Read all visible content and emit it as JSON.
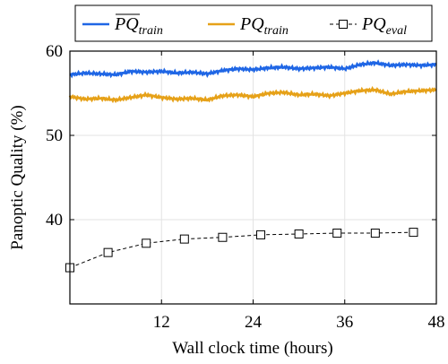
{
  "chart_data": {
    "type": "line",
    "title": "",
    "xlabel": "Wall clock time (hours)",
    "ylabel": "Panoptic Quality (%)",
    "xlim": [
      0,
      48
    ],
    "ylim": [
      30,
      60
    ],
    "xticks": [
      12,
      24,
      36,
      48
    ],
    "yticks": [
      40,
      50,
      60
    ],
    "grid": true,
    "legend_position": "top",
    "series": [
      {
        "name": "PQ_train (averaged, overline)",
        "legend_label": "PQ",
        "legend_subscript": "train",
        "legend_overline": true,
        "color": "#1f66e5",
        "style": "solid",
        "x": [
          0,
          2,
          4,
          6,
          8,
          10,
          12,
          14,
          16,
          18,
          20,
          22,
          24,
          26,
          28,
          30,
          32,
          34,
          36,
          38,
          40,
          42,
          44,
          46,
          48
        ],
        "y": [
          57.2,
          57.4,
          57.3,
          57.2,
          57.6,
          57.5,
          57.6,
          57.4,
          57.5,
          57.3,
          57.7,
          57.9,
          57.8,
          58.0,
          58.1,
          57.9,
          58.0,
          58.1,
          57.9,
          58.4,
          58.6,
          58.3,
          58.4,
          58.3,
          58.4
        ]
      },
      {
        "name": "PQ_train",
        "legend_label": "PQ",
        "legend_subscript": "train",
        "legend_overline": false,
        "color": "#e6a118",
        "style": "solid",
        "x": [
          0,
          2,
          4,
          6,
          8,
          10,
          12,
          14,
          16,
          18,
          20,
          22,
          24,
          26,
          28,
          30,
          32,
          34,
          36,
          38,
          40,
          42,
          44,
          46,
          48
        ],
        "y": [
          54.6,
          54.3,
          54.4,
          54.2,
          54.5,
          54.8,
          54.5,
          54.3,
          54.4,
          54.2,
          54.7,
          54.8,
          54.6,
          55.0,
          55.1,
          54.8,
          54.9,
          54.7,
          55.0,
          55.3,
          55.4,
          54.9,
          55.2,
          55.3,
          55.4
        ]
      },
      {
        "name": "PQ_eval",
        "legend_label": "PQ",
        "legend_subscript": "eval",
        "legend_overline": false,
        "color": "#000000",
        "style": "dashed",
        "marker": "square",
        "x": [
          0,
          5,
          10,
          15,
          20,
          25,
          30,
          35,
          40,
          45
        ],
        "y": [
          34.3,
          36.1,
          37.2,
          37.7,
          37.9,
          38.2,
          38.3,
          38.4,
          38.4,
          38.5
        ]
      }
    ]
  }
}
